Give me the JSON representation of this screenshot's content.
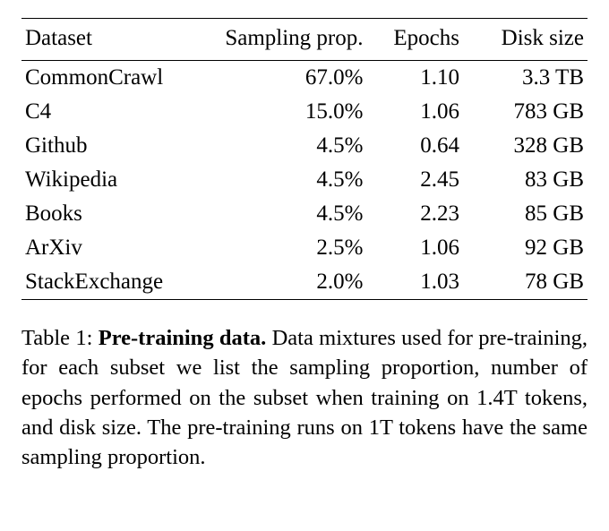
{
  "table": {
    "columns": [
      "Dataset",
      "Sampling prop.",
      "Epochs",
      "Disk size"
    ],
    "rows": [
      {
        "dataset": "CommonCrawl",
        "sampling": "67.0%",
        "epochs": "1.10",
        "disk": "3.3 TB"
      },
      {
        "dataset": "C4",
        "sampling": "15.0%",
        "epochs": "1.06",
        "disk": "783 GB"
      },
      {
        "dataset": "Github",
        "sampling": "4.5%",
        "epochs": "0.64",
        "disk": "328 GB"
      },
      {
        "dataset": "Wikipedia",
        "sampling": "4.5%",
        "epochs": "2.45",
        "disk": "83 GB"
      },
      {
        "dataset": "Books",
        "sampling": "4.5%",
        "epochs": "2.23",
        "disk": "85 GB"
      },
      {
        "dataset": "ArXiv",
        "sampling": "2.5%",
        "epochs": "1.06",
        "disk": "92 GB"
      },
      {
        "dataset": "StackExchange",
        "sampling": "2.0%",
        "epochs": "1.03",
        "disk": "78 GB"
      }
    ],
    "column_align": [
      "left",
      "right",
      "right",
      "right"
    ],
    "border_color": "#000000",
    "background_color": "#ffffff",
    "font_family": "Times New Roman",
    "header_fontsize": 25,
    "cell_fontsize": 25
  },
  "caption": {
    "label": "Table 1:",
    "title": "Pre-training data.",
    "body": "Data mixtures used for pre-training, for each subset we list the sampling proportion, number of epochs performed on the subset when training on 1.4T tokens, and disk size. The pre-training runs on 1T tokens have the same sampling proportion.",
    "fontsize": 24.5
  }
}
